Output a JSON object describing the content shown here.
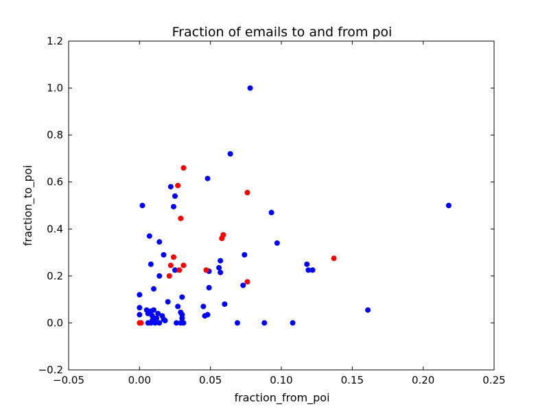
{
  "chart_data": {
    "type": "scatter",
    "title": "Fraction of emails to and from poi",
    "xlabel": "fraction_from_poi",
    "ylabel": "fraction_to_poi",
    "xlim": [
      -0.05,
      0.25
    ],
    "ylim": [
      -0.2,
      1.2
    ],
    "x_ticks": [
      -0.05,
      0.0,
      0.05,
      0.1,
      0.15,
      0.2,
      0.25
    ],
    "x_tick_labels": [
      "−0.05",
      "0.00",
      "0.05",
      "0.10",
      "0.15",
      "0.20",
      "0.25"
    ],
    "y_ticks": [
      -0.2,
      0.0,
      0.2,
      0.4,
      0.6,
      0.8,
      1.0,
      1.2
    ],
    "y_tick_labels": [
      "−0.2",
      "0.0",
      "0.2",
      "0.4",
      "0.6",
      "0.8",
      "1.0",
      "1.2"
    ],
    "grid": false,
    "legend": "none",
    "colors": {
      "blue": "#0000ff",
      "red": "#ff0000"
    },
    "series": [
      {
        "color": "#0000ff",
        "x": [
          0.078,
          0.064,
          0.048,
          0.022,
          0.025,
          0.002,
          0.024,
          0.093,
          0.007,
          0.014,
          0.097,
          0.017,
          0.008,
          0.057,
          0.074,
          0.118,
          0.119,
          0.122,
          0.025,
          0.049,
          0.014,
          0.057,
          0.056,
          0.073,
          0.01,
          0.049,
          0.0,
          0.03,
          0.02,
          0.06,
          0.027,
          0.045,
          0.161,
          0.218,
          0.005,
          0.008,
          0.01,
          0.013,
          0.016,
          0.0,
          0.006,
          0.009,
          0.012,
          0.017,
          0.018,
          0.029,
          0.03,
          0.048,
          0.046,
          0.0,
          0.006,
          0.008,
          0.011,
          0.014,
          0.026,
          0.029,
          0.031,
          0.069,
          0.088,
          0.108,
          0.03,
          0.009
        ],
        "y": [
          1.0,
          0.72,
          0.615,
          0.58,
          0.54,
          0.5,
          0.495,
          0.47,
          0.37,
          0.345,
          0.34,
          0.29,
          0.25,
          0.265,
          0.29,
          0.25,
          0.225,
          0.225,
          0.225,
          0.22,
          0.2,
          0.215,
          0.235,
          0.16,
          0.145,
          0.15,
          0.12,
          0.11,
          0.09,
          0.08,
          0.07,
          0.07,
          0.055,
          0.5,
          0.055,
          0.05,
          0.055,
          0.04,
          0.03,
          0.065,
          0.04,
          0.03,
          0.02,
          0.015,
          0.01,
          0.045,
          0.035,
          0.035,
          0.03,
          0.035,
          0.0,
          0.0,
          0.0,
          0.0,
          0.0,
          0.0,
          0.0,
          0.0,
          0.0,
          0.0,
          0.02,
          0.01
        ]
      },
      {
        "color": "#ff0000",
        "x": [
          0.031,
          0.027,
          0.076,
          0.029,
          0.059,
          0.058,
          0.024,
          0.137,
          0.022,
          0.031,
          0.028,
          0.047,
          0.021,
          0.076,
          0.0,
          0.001
        ],
        "y": [
          0.66,
          0.585,
          0.555,
          0.445,
          0.375,
          0.36,
          0.28,
          0.275,
          0.245,
          0.245,
          0.225,
          0.225,
          0.2,
          0.175,
          0.0,
          0.0
        ]
      }
    ]
  }
}
